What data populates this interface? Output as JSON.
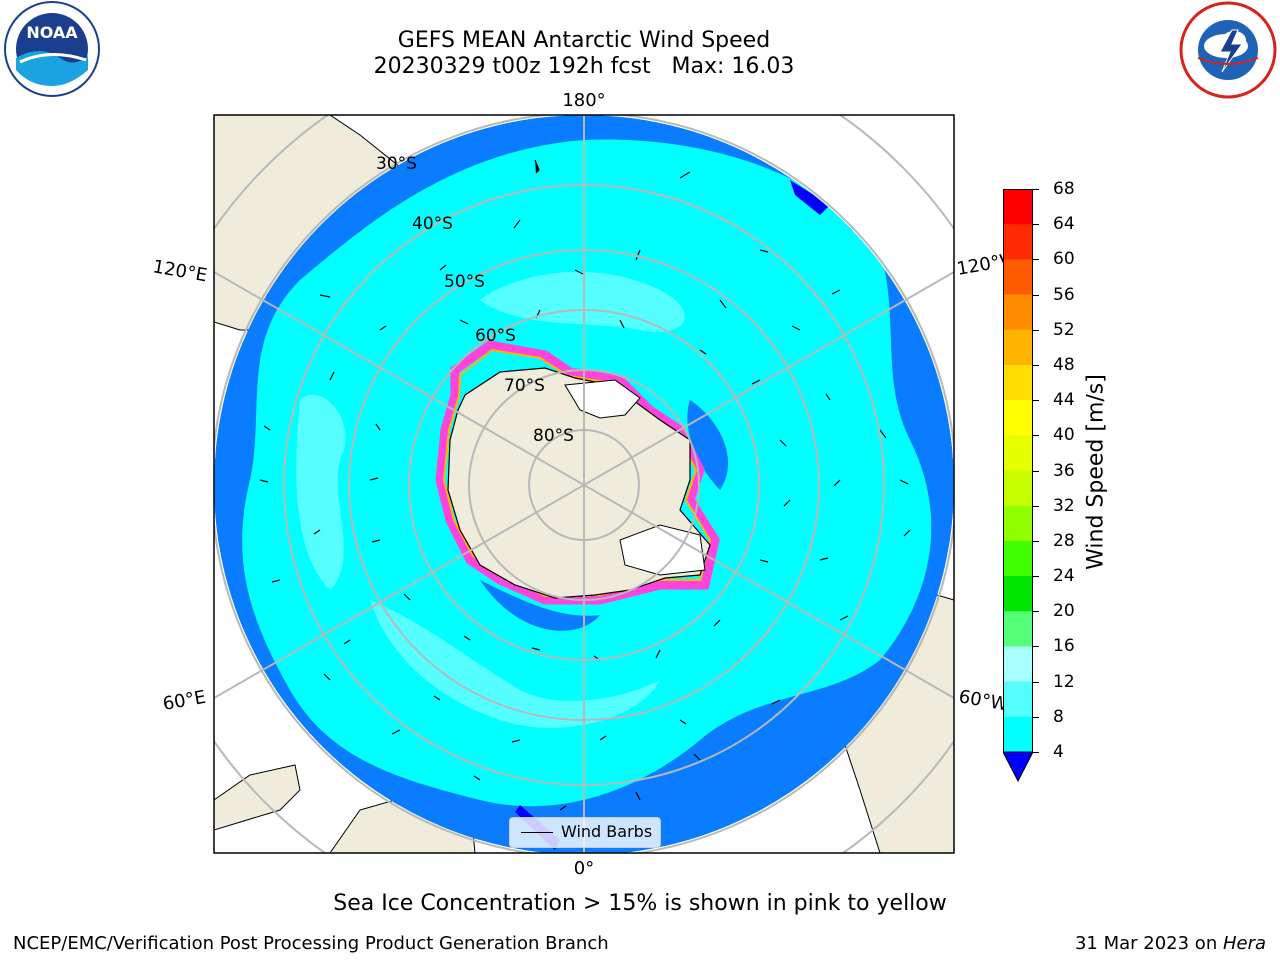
{
  "header": {
    "title_line1": "GEFS MEAN Antarctic Wind Speed",
    "title_line2": "20230329 t00z 192h fcst   Max: 16.03"
  },
  "logos": {
    "left": {
      "icon": "noaa-logo",
      "text": "NOAA"
    },
    "right": {
      "icon": "national-weather-service-logo"
    }
  },
  "map": {
    "projection": "south-polar-stereographic",
    "longitude_labels": {
      "top": "180°",
      "bottom": "0°",
      "upper_left": "120°E",
      "upper_right": "120°W",
      "lower_left": "60°E",
      "lower_right": "60°W"
    },
    "latitude_labels": [
      "30°S",
      "40°S",
      "50°S",
      "60°S",
      "70°S",
      "80°S"
    ],
    "colors": {
      "land": "#efecdc",
      "ice_shelf": "#ffffff",
      "speed_4_8": "#0a7cff",
      "speed_8_12": "#00ffff",
      "speed_12_16": "#55ffff",
      "sea_ice": "#ff44dd",
      "grid": "#b8b8b8"
    }
  },
  "legend": {
    "label": "Wind Barbs"
  },
  "colorbar": {
    "label": "Wind Speed [m/s]",
    "ticks": [
      "68",
      "64",
      "60",
      "56",
      "52",
      "48",
      "44",
      "40",
      "36",
      "32",
      "28",
      "24",
      "20",
      "16",
      "12",
      "8",
      "4"
    ],
    "colors": [
      "#ff0000",
      "#ff2a00",
      "#ff5a00",
      "#ff8c00",
      "#ffb400",
      "#ffdd00",
      "#ffff00",
      "#e6ff00",
      "#c8ff00",
      "#90ff00",
      "#40ff00",
      "#00e600",
      "#55ff77",
      "#a8ffff",
      "#55ffff",
      "#00ffff",
      "#0a7cff"
    ],
    "extend_color": "#0000ff"
  },
  "subtitle": "Sea Ice Concentration > 15% is shown in pink to yellow",
  "footer": {
    "left": "NCEP/EMC/Verification Post Processing Product Generation Branch",
    "right_prefix": "31 Mar 2023 on ",
    "right_machine": "Hera"
  }
}
